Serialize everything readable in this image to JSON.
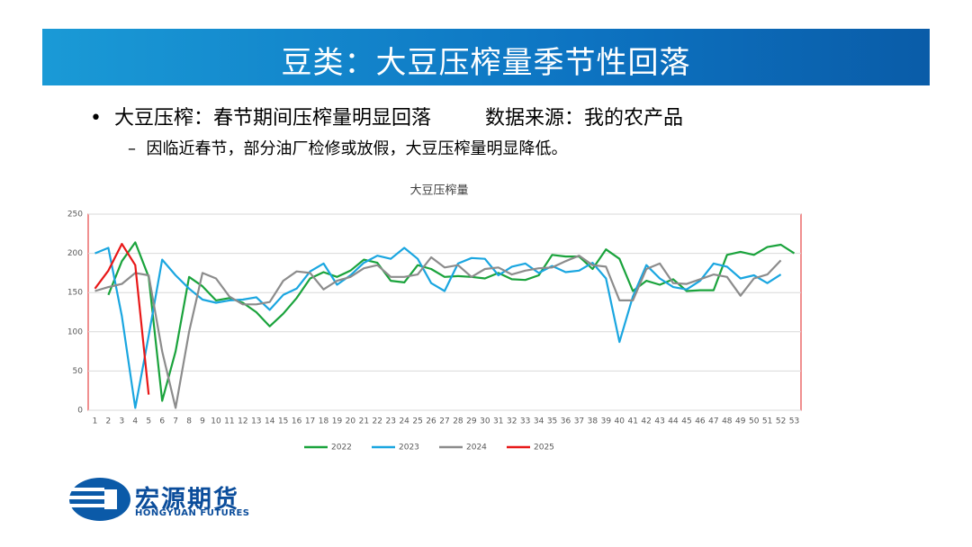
{
  "header": {
    "title": "豆类：大豆压榨量季节性回落"
  },
  "bullets": {
    "main": "大豆压榨：春节期间压榨量明显回落",
    "source": "数据来源：我的农产品",
    "sub": "因临近春节，部分油厂检修或放假，大豆压榨量明显降低。"
  },
  "logo": {
    "name": "宏源期货",
    "english": "HONGYUAN FUTURES"
  },
  "chart_data": {
    "type": "line",
    "title": "大豆压榨量",
    "categories": [
      1,
      2,
      3,
      4,
      5,
      6,
      7,
      8,
      9,
      10,
      11,
      12,
      13,
      14,
      15,
      16,
      17,
      18,
      19,
      20,
      21,
      22,
      23,
      24,
      25,
      26,
      27,
      28,
      29,
      30,
      31,
      32,
      33,
      34,
      35,
      36,
      37,
      38,
      39,
      40,
      41,
      42,
      43,
      44,
      45,
      46,
      47,
      48,
      49,
      50,
      51,
      52,
      53
    ],
    "ylim": [
      0,
      250
    ],
    "yticks": [
      0,
      50,
      100,
      150,
      200,
      250
    ],
    "grid": true,
    "legend": "bottom",
    "series": [
      {
        "name": "2022",
        "color": "#1aa33c",
        "values": [
          null,
          147,
          190,
          214,
          170,
          12,
          75,
          170,
          158,
          140,
          143,
          137,
          125,
          107,
          123,
          143,
          168,
          176,
          170,
          178,
          192,
          188,
          165,
          163,
          185,
          180,
          170,
          171,
          170,
          168,
          175,
          167,
          166,
          172,
          198,
          196,
          196,
          180,
          205,
          193,
          152,
          165,
          160,
          167,
          152,
          153,
          153,
          198,
          202,
          198,
          208,
          211,
          200
        ]
      },
      {
        "name": "2023",
        "color": "#1aa6e0",
        "values": [
          200,
          207,
          120,
          3,
          95,
          192,
          172,
          155,
          141,
          137,
          140,
          141,
          144,
          128,
          147,
          155,
          177,
          187,
          160,
          172,
          188,
          197,
          193,
          207,
          193,
          162,
          152,
          187,
          194,
          193,
          172,
          183,
          187,
          175,
          184,
          176,
          178,
          188,
          168,
          87,
          145,
          185,
          168,
          157,
          154,
          165,
          187,
          183,
          168,
          172,
          162,
          173,
          null
        ]
      },
      {
        "name": "2024",
        "color": "#8c8c8c",
        "values": [
          152,
          157,
          161,
          175,
          172,
          75,
          3,
          100,
          175,
          168,
          145,
          135,
          135,
          138,
          165,
          177,
          175,
          154,
          165,
          170,
          181,
          185,
          170,
          170,
          173,
          195,
          182,
          185,
          170,
          180,
          182,
          173,
          178,
          181,
          182,
          190,
          197,
          185,
          183,
          140,
          140,
          180,
          187,
          162,
          161,
          167,
          173,
          170,
          146,
          168,
          173,
          191,
          null
        ]
      },
      {
        "name": "2025",
        "color": "#e81818",
        "values": [
          155,
          178,
          212,
          185,
          20,
          null,
          null,
          null,
          null,
          null,
          null,
          null,
          null,
          null,
          null,
          null,
          null,
          null,
          null,
          null,
          null,
          null,
          null,
          null,
          null,
          null,
          null,
          null,
          null,
          null,
          null,
          null,
          null,
          null,
          null,
          null,
          null,
          null,
          null,
          null,
          null,
          null,
          null,
          null,
          null,
          null,
          null,
          null,
          null,
          null,
          null,
          null,
          null
        ]
      }
    ]
  }
}
